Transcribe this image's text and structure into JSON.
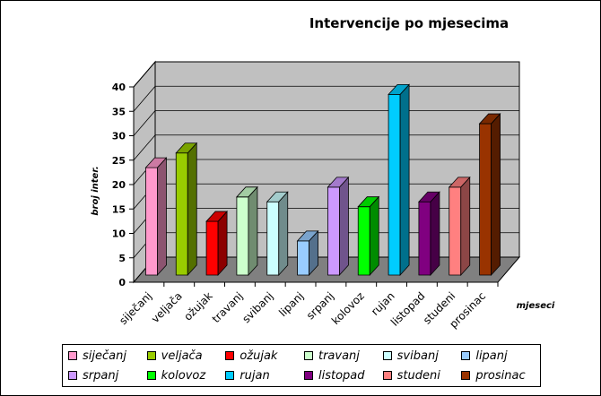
{
  "chart_data": {
    "type": "bar",
    "title": "Intervencije po mjesecima",
    "xlabel": "mjeseci",
    "ylabel": "broj inter.",
    "ylim": [
      0,
      40
    ],
    "yticks": [
      0,
      5,
      10,
      15,
      20,
      25,
      30,
      35,
      40
    ],
    "grid": true,
    "legend_position": "bottom",
    "categories": [
      "siječanj",
      "veljača",
      "ožujak",
      "travanj",
      "svibanj",
      "lipanj",
      "srpanj",
      "kolovoz",
      "rujan",
      "listopad",
      "studeni",
      "prosinac"
    ],
    "values": [
      22,
      25,
      11,
      16,
      15,
      7,
      18,
      14,
      37,
      15,
      18,
      31
    ],
    "colors": [
      "#ff99cc",
      "#99cc00",
      "#ff0000",
      "#ccffcc",
      "#ccffff",
      "#99ccff",
      "#cc99ff",
      "#00ff00",
      "#00ccff",
      "#800080",
      "#ff8080",
      "#993300"
    ],
    "plot_background": "#c0c0c0",
    "floor_color": "#808080"
  }
}
